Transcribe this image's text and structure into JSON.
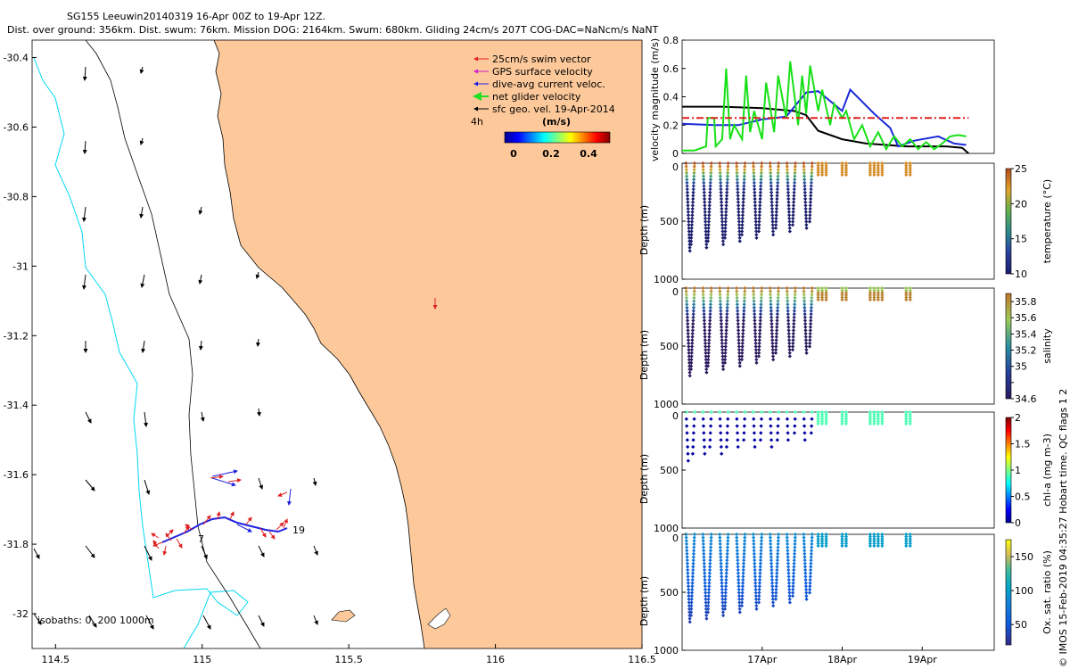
{
  "header": {
    "title": "SG155 Leeuwin20140319 16-Apr 00Z to 19-Apr 12Z.",
    "subtitle": "Dist. over ground: 356km. Dist. swum: 76km. Mission DOG: 2164km. Swum: 680km. Gliding 24cm/s 207T COG-DAC=NaNcm/s NaNT"
  },
  "map": {
    "type": "map",
    "xlim": [
      114.42,
      116.5
    ],
    "ylim": [
      -32.1,
      -30.35
    ],
    "xticks": [
      114.5,
      115,
      115.5,
      116,
      116.5
    ],
    "xtick_labels": [
      "114.5",
      "115",
      "115.5",
      "116",
      "116.5"
    ],
    "yticks": [
      -30.4,
      -30.6,
      -30.8,
      -31,
      -31.2,
      -31.4,
      -31.6,
      -31.8,
      -32
    ],
    "ytick_labels": [
      "-30.4",
      "-30.6",
      "-30.8",
      "-31",
      "-31.2",
      "-31.4",
      "-31.6",
      "-31.8",
      "-32"
    ],
    "legend": [
      {
        "label": "25cm/s swim vector",
        "color": "#e02020"
      },
      {
        "label": "GPS surface velocity",
        "color": "#d020d0"
      },
      {
        "label": "dive-avg current veloc.",
        "color": "#2020e0"
      },
      {
        "label": "net glider velocity",
        "color": "#20e020"
      },
      {
        "label": "sfc geo. vel. 19-Apr-2014",
        "color": "#000000"
      }
    ],
    "interval_label": "4h",
    "colorbar_title": "(m/s)",
    "colorbar_ticks": [
      0,
      0.2,
      0.4
    ],
    "colorbar_tick_labels": [
      "0",
      "0.2",
      "0.4"
    ],
    "isobaths_label": "isobaths: 0, 200  1000m",
    "track_start_label": "7",
    "track_end_label": "19",
    "land_color": "#fdc99a",
    "isobath_200_color": "#00d8f0"
  },
  "chart_data": [
    {
      "type": "line",
      "ylabel": "velocity magnitude (m/s)",
      "ylim": [
        0,
        0.8
      ],
      "yticks": [
        0,
        0.2,
        0.4,
        0.6,
        0.8
      ],
      "ytick_labels": [
        "0",
        "0.2",
        "0.4",
        "0.6",
        "0.8"
      ],
      "xlim": [
        16.0,
        19.9
      ],
      "series": [
        {
          "color": "#000000",
          "x": [
            16.0,
            16.5,
            17.0,
            17.4,
            17.55,
            17.7,
            18.0,
            18.3,
            18.8,
            19.3,
            19.5,
            19.58
          ],
          "y": [
            0.33,
            0.33,
            0.32,
            0.3,
            0.27,
            0.16,
            0.1,
            0.07,
            0.05,
            0.05,
            0.04,
            0.0
          ]
        },
        {
          "color": "#1a2ad8",
          "x": [
            16.0,
            16.4,
            16.7,
            17.0,
            17.3,
            17.55,
            17.7,
            18.0,
            18.1,
            18.4,
            18.6,
            18.7,
            18.9,
            19.2,
            19.4,
            19.55
          ],
          "y": [
            0.21,
            0.2,
            0.2,
            0.24,
            0.26,
            0.43,
            0.44,
            0.3,
            0.45,
            0.28,
            0.18,
            0.05,
            0.09,
            0.12,
            0.07,
            0.06
          ]
        },
        {
          "color": "#18e018",
          "x": [
            16.0,
            16.15,
            16.3,
            16.32,
            16.4,
            16.42,
            16.5,
            16.55,
            16.6,
            16.65,
            16.75,
            16.8,
            16.85,
            16.9,
            17.0,
            17.05,
            17.15,
            17.2,
            17.3,
            17.35,
            17.45,
            17.5,
            17.55,
            17.6,
            17.7,
            17.75,
            17.85,
            17.9,
            18.0,
            18.05,
            18.15,
            18.25,
            18.35,
            18.45,
            18.55,
            18.65,
            18.75,
            18.85,
            18.95,
            19.05,
            19.15,
            19.25,
            19.35,
            19.45,
            19.55
          ],
          "y": [
            0.02,
            0.02,
            0.05,
            0.25,
            0.25,
            0.05,
            0.1,
            0.6,
            0.1,
            0.2,
            0.1,
            0.55,
            0.15,
            0.3,
            0.1,
            0.5,
            0.15,
            0.55,
            0.25,
            0.65,
            0.2,
            0.55,
            0.28,
            0.62,
            0.3,
            0.45,
            0.2,
            0.35,
            0.25,
            0.3,
            0.1,
            0.2,
            0.05,
            0.15,
            0.03,
            0.12,
            0.05,
            0.1,
            0.03,
            0.08,
            0.03,
            0.07,
            0.12,
            0.13,
            0.12
          ]
        },
        {
          "color": "#e02020",
          "dashed": true,
          "x": [
            16.0,
            19.58
          ],
          "y": [
            0.25,
            0.25
          ]
        }
      ]
    },
    {
      "type": "scatter",
      "variable": "temperature",
      "ylabel": "Depth (m)",
      "colorbar_label": "temperature (°C)",
      "ylim": [
        1000,
        0
      ],
      "colorbar_ticks": [
        10,
        15,
        20,
        25
      ],
      "colorbar_tick_labels": [
        "10",
        "15",
        "20",
        "25"
      ],
      "clim": [
        10,
        25
      ]
    },
    {
      "type": "scatter",
      "variable": "salinity",
      "ylabel": "Depth (m)",
      "colorbar_label": "salinity",
      "ylim": [
        1000,
        0
      ],
      "colorbar_ticks": [
        34.6,
        34.8,
        35,
        35.2,
        35.4,
        35.6,
        35.8
      ],
      "colorbar_tick_labels": [
        "34.6",
        "",
        "35",
        "35.2",
        "35.4",
        "35.6",
        "35.8"
      ],
      "clim": [
        34.6,
        35.9
      ]
    },
    {
      "type": "scatter",
      "variable": "chl-a",
      "ylabel": "Depth (m)",
      "colorbar_label": "chl-a (mg m-3)",
      "ylim": [
        1000,
        0
      ],
      "colorbar_ticks": [
        0,
        0.5,
        1,
        1.5,
        2
      ],
      "colorbar_tick_labels": [
        "0",
        "0.5",
        "1",
        "1.5",
        "2"
      ],
      "clim": [
        0,
        2
      ]
    },
    {
      "type": "scatter",
      "variable": "oxygen",
      "ylabel": "Depth (m)",
      "colorbar_label": "Ox. sat. ratio (%)",
      "ylim": [
        1000,
        0
      ],
      "colorbar_ticks": [
        50,
        100,
        150
      ],
      "colorbar_tick_labels": [
        "50",
        "100",
        "150"
      ],
      "clim": [
        20,
        175
      ],
      "xticks": [
        17,
        18,
        19
      ],
      "xtick_labels": [
        "17Apr",
        "18Apr",
        "19Apr"
      ]
    }
  ],
  "ytick_labels_depth": [
    "0",
    "500",
    "1000"
  ],
  "footer_note": "© IMOS 15-Feb-2019 04:35:27 Hobart time. QC flags 1  2"
}
